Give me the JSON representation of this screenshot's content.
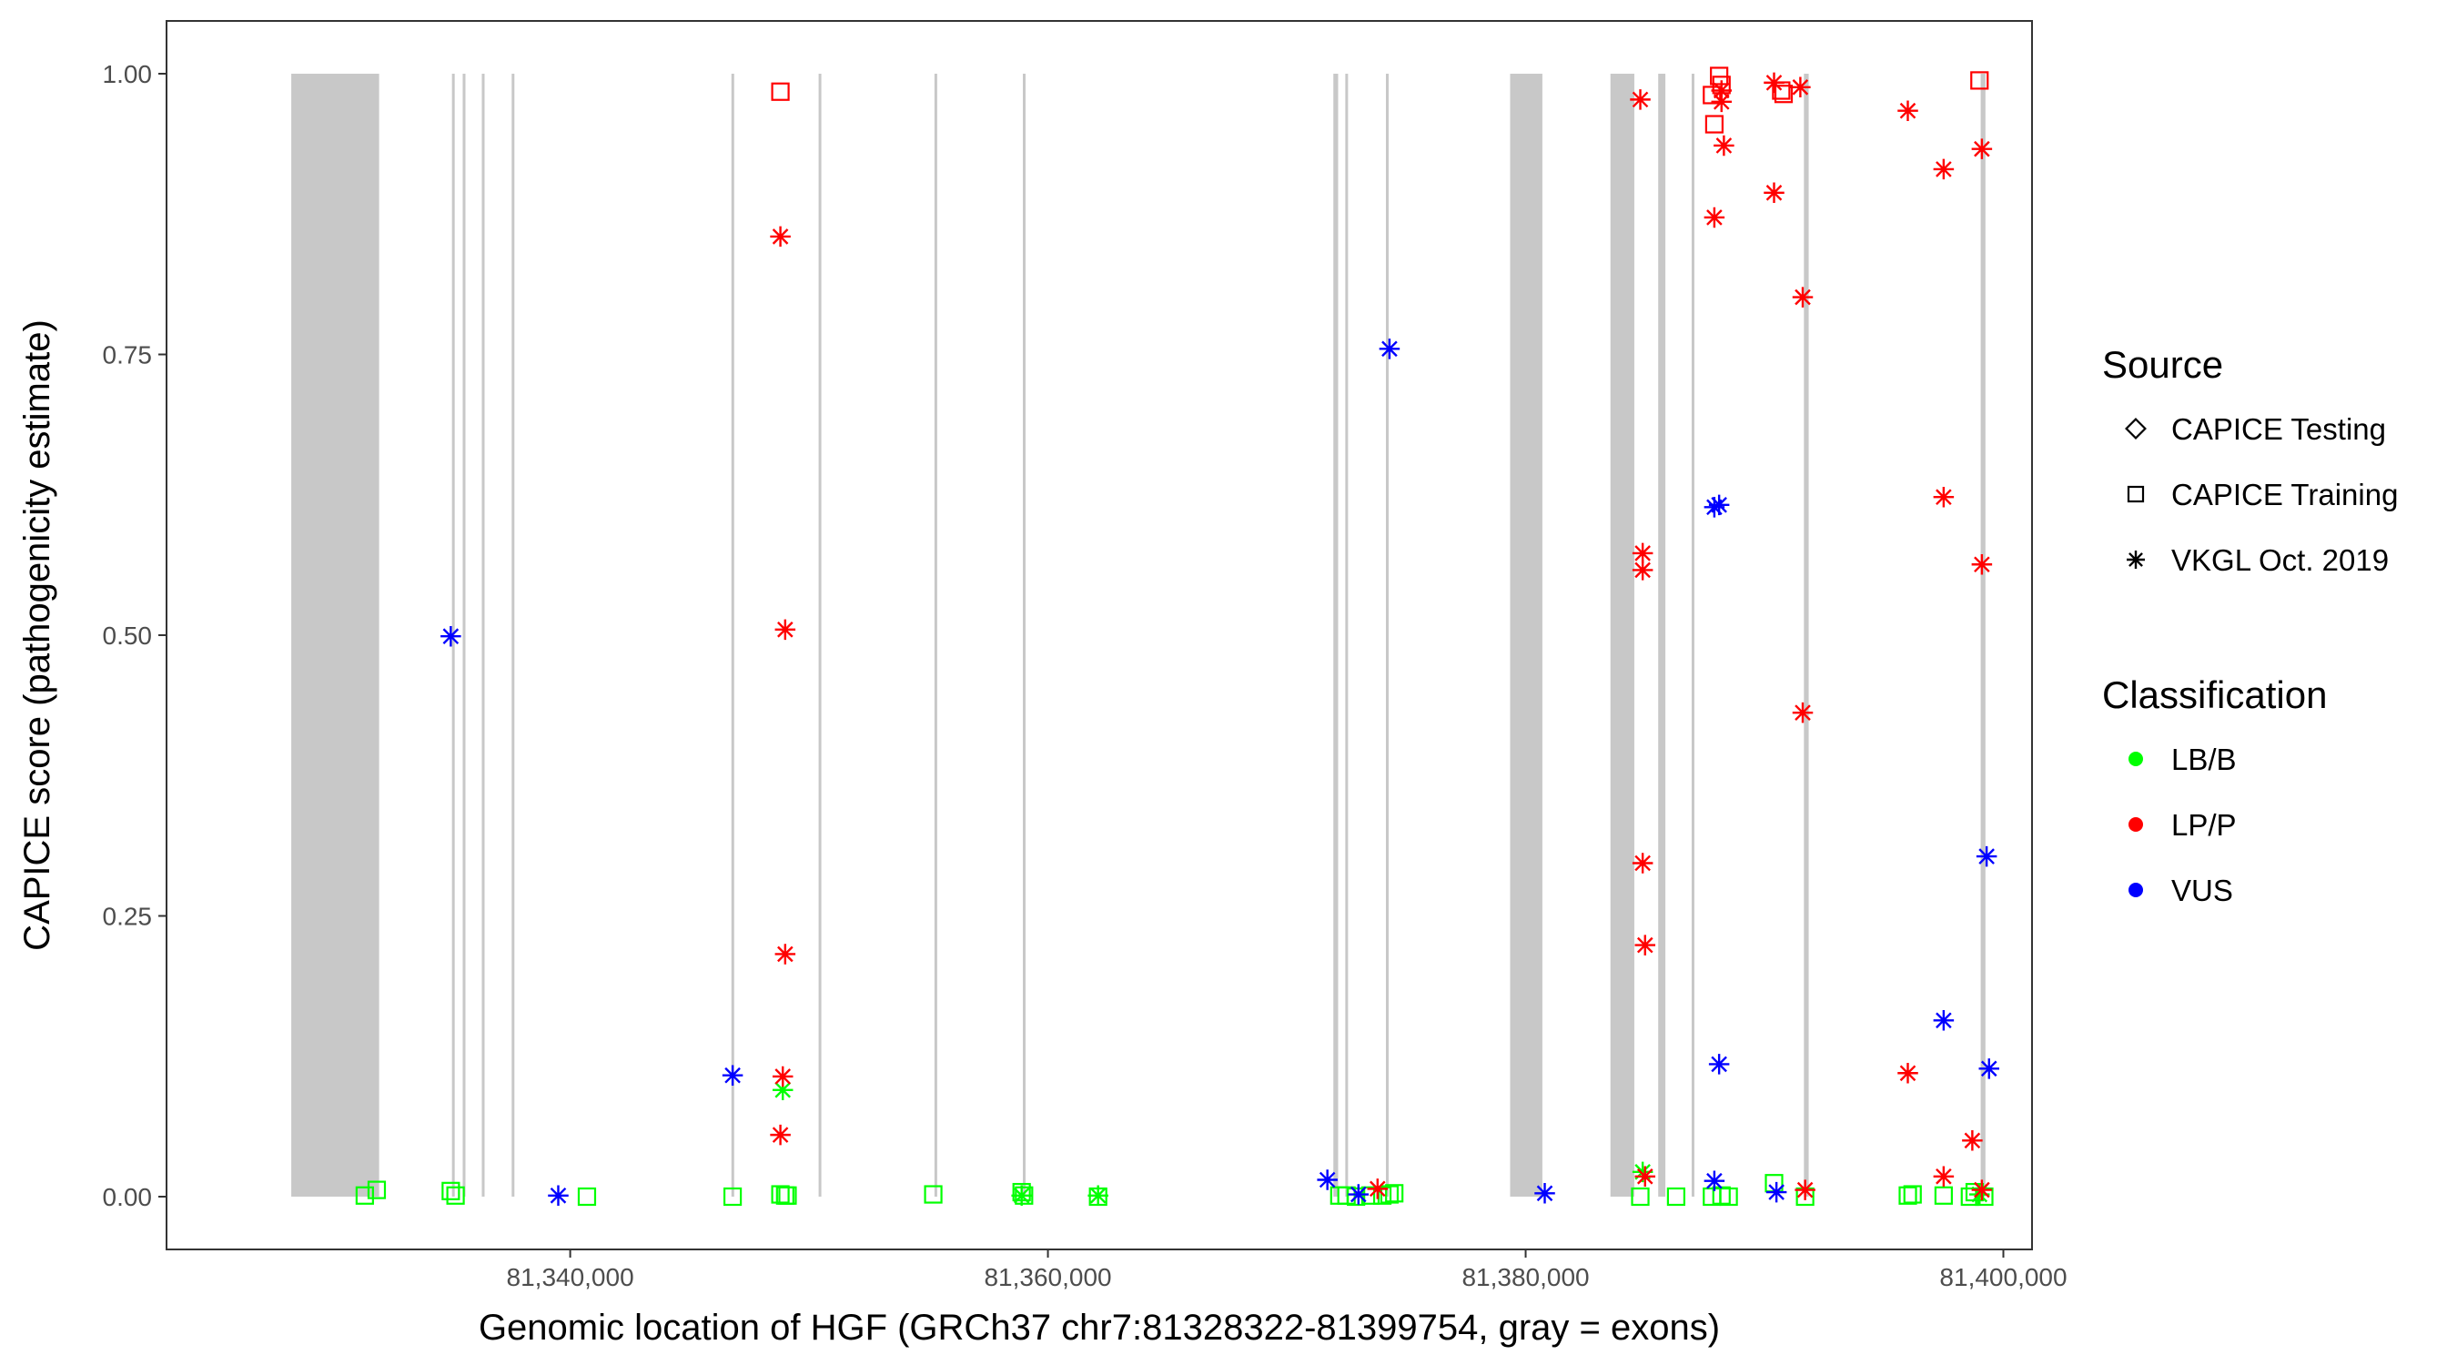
{
  "chart_data": {
    "type": "scatter",
    "title": "",
    "xlabel": "Genomic location of HGF (GRCh37 chr7:81328322-81399754, gray = exons)",
    "ylabel": "CAPICE score (pathogenicity estimate)",
    "xlim": [
      81323100,
      81401200
    ],
    "ylim": [
      -0.047,
      1.047
    ],
    "x_ticks": [
      81340000,
      81360000,
      81380000,
      81400000
    ],
    "x_tick_labels": [
      "81,340,000",
      "81,360,000",
      "81,380,000",
      "81,400,000"
    ],
    "y_ticks": [
      0.0,
      0.25,
      0.5,
      0.75,
      1.0
    ],
    "y_tick_labels": [
      "0.00",
      "0.25",
      "0.50",
      "0.75",
      "1.00"
    ],
    "grid": false,
    "legend_position": "right",
    "exons": [
      [
        81328322,
        81332000
      ],
      [
        81335050,
        81335150
      ],
      [
        81335500,
        81335600
      ],
      [
        81336300,
        81336400
      ],
      [
        81337550,
        81337650
      ],
      [
        81346750,
        81346850
      ],
      [
        81350400,
        81350500
      ],
      [
        81355250,
        81355350
      ],
      [
        81358950,
        81359050
      ],
      [
        81371950,
        81372150
      ],
      [
        81372450,
        81372550
      ],
      [
        81374150,
        81374250
      ],
      [
        81379350,
        81380700
      ],
      [
        81383550,
        81384550
      ],
      [
        81385550,
        81385850
      ],
      [
        81386950,
        81387050
      ],
      [
        81391650,
        81391850
      ],
      [
        81399050,
        81399250
      ]
    ],
    "legend": {
      "source": {
        "title": "Source",
        "entries": [
          {
            "label": "CAPICE Testing",
            "shape": "diamond"
          },
          {
            "label": "CAPICE Training",
            "shape": "square"
          },
          {
            "label": "VKGL Oct. 2019",
            "shape": "asterisk"
          }
        ]
      },
      "classification": {
        "title": "Classification",
        "entries": [
          {
            "label": "LB/B",
            "color": "#00ff00"
          },
          {
            "label": "LP/P",
            "color": "#ff0000"
          },
          {
            "label": "VUS",
            "color": "#0000ff"
          }
        ]
      }
    },
    "series": [
      {
        "classification": "LB/B",
        "source": "CAPICE Training",
        "shape": "square",
        "color": "#00ff00",
        "points": [
          [
            81331400,
            0.001
          ],
          [
            81331900,
            0.006
          ],
          [
            81335000,
            0.005
          ],
          [
            81335200,
            0.001
          ],
          [
            81340700,
            0.0
          ],
          [
            81346800,
            0.0
          ],
          [
            81348800,
            0.002
          ],
          [
            81349000,
            0.001
          ],
          [
            81349100,
            0.001
          ],
          [
            81355200,
            0.002
          ],
          [
            81358900,
            0.004
          ],
          [
            81359000,
            0.001
          ],
          [
            81362100,
            0.0
          ],
          [
            81372200,
            0.001
          ],
          [
            81372500,
            0.001
          ],
          [
            81372900,
            0.0
          ],
          [
            81373500,
            0.001
          ],
          [
            81374000,
            0.001
          ],
          [
            81374300,
            0.002
          ],
          [
            81374500,
            0.003
          ],
          [
            81384800,
            0.0
          ],
          [
            81386300,
            0.0
          ],
          [
            81387800,
            0.0
          ],
          [
            81388200,
            0.001
          ],
          [
            81388500,
            0.0
          ],
          [
            81390400,
            0.012
          ],
          [
            81391700,
            0.0
          ],
          [
            81396000,
            0.001
          ],
          [
            81396200,
            0.002
          ],
          [
            81397500,
            0.001
          ],
          [
            81398600,
            0.0
          ],
          [
            81398800,
            0.004
          ],
          [
            81399200,
            0.0
          ]
        ]
      },
      {
        "classification": "LB/B",
        "source": "VKGL Oct. 2019",
        "shape": "asterisk",
        "color": "#00ff00",
        "points": [
          [
            81348900,
            0.095
          ],
          [
            81358900,
            0.001
          ],
          [
            81362100,
            0.001
          ],
          [
            81384900,
            0.022
          ],
          [
            81399000,
            0.002
          ]
        ]
      },
      {
        "classification": "LP/P",
        "source": "CAPICE Training",
        "shape": "square",
        "color": "#ff0000",
        "points": [
          [
            81348800,
            0.984
          ],
          [
            81387800,
            0.981
          ],
          [
            81387900,
            0.955
          ],
          [
            81388100,
            0.998
          ],
          [
            81388200,
            0.99
          ],
          [
            81390700,
            0.985
          ],
          [
            81390800,
            0.982
          ],
          [
            81399000,
            0.994
          ]
        ]
      },
      {
        "classification": "LP/P",
        "source": "VKGL Oct. 2019",
        "shape": "asterisk",
        "color": "#ff0000",
        "points": [
          [
            81348800,
            0.855
          ],
          [
            81349000,
            0.505
          ],
          [
            81349000,
            0.216
          ],
          [
            81348900,
            0.107
          ],
          [
            81348800,
            0.055
          ],
          [
            81373800,
            0.007
          ],
          [
            81384800,
            0.977
          ],
          [
            81384900,
            0.573
          ],
          [
            81384900,
            0.558
          ],
          [
            81384900,
            0.297
          ],
          [
            81385000,
            0.224
          ],
          [
            81385000,
            0.018
          ],
          [
            81387900,
            0.872
          ],
          [
            81388200,
            0.975
          ],
          [
            81388300,
            0.936
          ],
          [
            81388200,
            0.985
          ],
          [
            81390400,
            0.992
          ],
          [
            81390400,
            0.894
          ],
          [
            81391500,
            0.988
          ],
          [
            81391600,
            0.801
          ],
          [
            81391600,
            0.431
          ],
          [
            81391700,
            0.006
          ],
          [
            81396000,
            0.967
          ],
          [
            81396000,
            0.11
          ],
          [
            81397500,
            0.915
          ],
          [
            81397500,
            0.623
          ],
          [
            81397500,
            0.018
          ],
          [
            81398700,
            0.05
          ],
          [
            81399100,
            0.933
          ],
          [
            81399100,
            0.563
          ],
          [
            81399100,
            0.006
          ]
        ]
      },
      {
        "classification": "VUS",
        "source": "VKGL Oct. 2019",
        "shape": "asterisk",
        "color": "#0000ff",
        "points": [
          [
            81335000,
            0.499
          ],
          [
            81339500,
            0.001
          ],
          [
            81346800,
            0.108
          ],
          [
            81371700,
            0.015
          ],
          [
            81373000,
            0.002
          ],
          [
            81374300,
            0.755
          ],
          [
            81380800,
            0.003
          ],
          [
            81387900,
            0.614
          ],
          [
            81388100,
            0.616
          ],
          [
            81388100,
            0.118
          ],
          [
            81387900,
            0.014
          ],
          [
            81390500,
            0.004
          ],
          [
            81397500,
            0.157
          ],
          [
            81399300,
            0.303
          ],
          [
            81399400,
            0.114
          ]
        ]
      }
    ]
  }
}
